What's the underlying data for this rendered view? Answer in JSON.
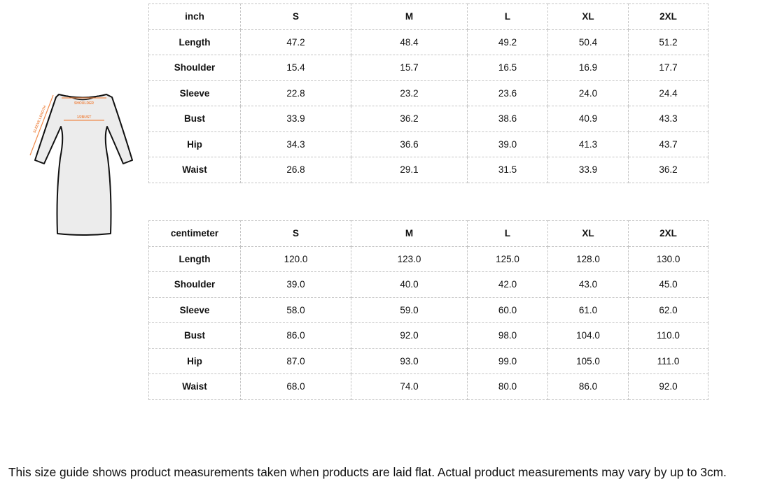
{
  "illustration": {
    "labels": {
      "shoulder": "SHOULDER",
      "bust": "1/2BUST",
      "sleeve": "SLEEVE LENGTH"
    },
    "accent": "#f08a4b"
  },
  "inch_table": {
    "headers": [
      "inch",
      "S",
      "M",
      "L",
      "XL",
      "2XL"
    ],
    "rows": [
      [
        "Length",
        "47.2",
        "48.4",
        "49.2",
        "50.4",
        "51.2"
      ],
      [
        "Shoulder",
        "15.4",
        "15.7",
        "16.5",
        "16.9",
        "17.7"
      ],
      [
        "Sleeve",
        "22.8",
        "23.2",
        "23.6",
        "24.0",
        "24.4"
      ],
      [
        "Bust",
        "33.9",
        "36.2",
        "38.6",
        "40.9",
        "43.3"
      ],
      [
        "Hip",
        "34.3",
        "36.6",
        "39.0",
        "41.3",
        "43.7"
      ],
      [
        "Waist",
        "26.8",
        "29.1",
        "31.5",
        "33.9",
        "36.2"
      ]
    ]
  },
  "cm_table": {
    "headers": [
      "centimeter",
      "S",
      "M",
      "L",
      "XL",
      "2XL"
    ],
    "rows": [
      [
        "Length",
        "120.0",
        "123.0",
        "125.0",
        "128.0",
        "130.0"
      ],
      [
        "Shoulder",
        "39.0",
        "40.0",
        "42.0",
        "43.0",
        "45.0"
      ],
      [
        "Sleeve",
        "58.0",
        "59.0",
        "60.0",
        "61.0",
        "62.0"
      ],
      [
        "Bust",
        "86.0",
        "92.0",
        "98.0",
        "104.0",
        "110.0"
      ],
      [
        "Hip",
        "87.0",
        "93.0",
        "99.0",
        "105.0",
        "111.0"
      ],
      [
        "Waist",
        "68.0",
        "74.0",
        "80.0",
        "86.0",
        "92.0"
      ]
    ]
  },
  "note": "This size guide shows product measurements taken when products are laid flat. Actual product measurements may vary by up to 3cm."
}
